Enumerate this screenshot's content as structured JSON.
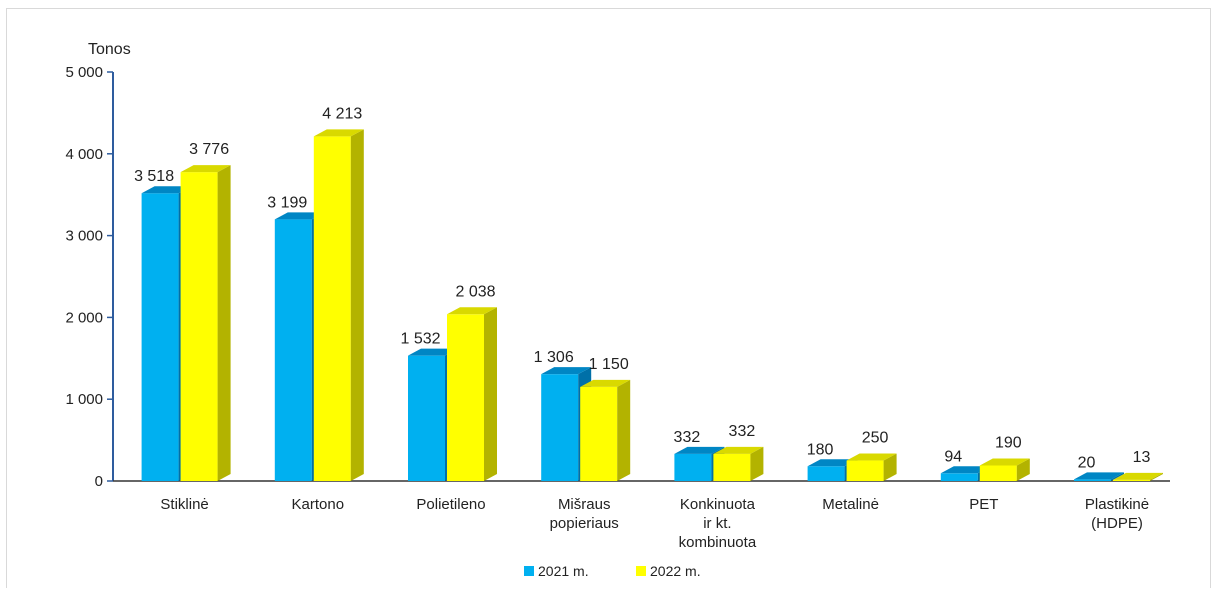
{
  "chart_data": {
    "type": "bar",
    "ylabel": "Tonos",
    "ylim": [
      0,
      5000
    ],
    "yticks": [
      {
        "value": 0,
        "label": "0"
      },
      {
        "value": 1000,
        "label": "1 000"
      },
      {
        "value": 2000,
        "label": "2 000"
      },
      {
        "value": 3000,
        "label": "3 000"
      },
      {
        "value": 4000,
        "label": "4 000"
      },
      {
        "value": 5000,
        "label": "5 000"
      }
    ],
    "categories": [
      [
        "Stiklinė"
      ],
      [
        "Kartono"
      ],
      [
        "Polietileno"
      ],
      [
        "Mišraus",
        "popieriaus"
      ],
      [
        "Konkinuota",
        "ir kt.",
        "kombinuota"
      ],
      [
        "Metalinė"
      ],
      [
        "PET"
      ],
      [
        "Plastikinė",
        "(HDPE)"
      ]
    ],
    "series": [
      {
        "name": "2021 m.",
        "color": "#00b0f0",
        "side": "#0070a8",
        "top": "#0086c4",
        "values": [
          3518,
          3199,
          1532,
          1306,
          332,
          180,
          94,
          20
        ],
        "labels": [
          "3 518",
          "3 199",
          "1 532",
          "1 306",
          "332",
          "180",
          "94",
          "20"
        ]
      },
      {
        "name": "2022 m.",
        "color": "#ffff00",
        "side": "#b3b300",
        "top": "#d9d900",
        "values": [
          3776,
          4213,
          2038,
          1150,
          332,
          250,
          190,
          13
        ],
        "labels": [
          "3 776",
          "4 213",
          "2 038",
          "1 150",
          "332",
          "250",
          "190",
          "13"
        ]
      }
    ],
    "grid": false,
    "legend": "bottom"
  }
}
